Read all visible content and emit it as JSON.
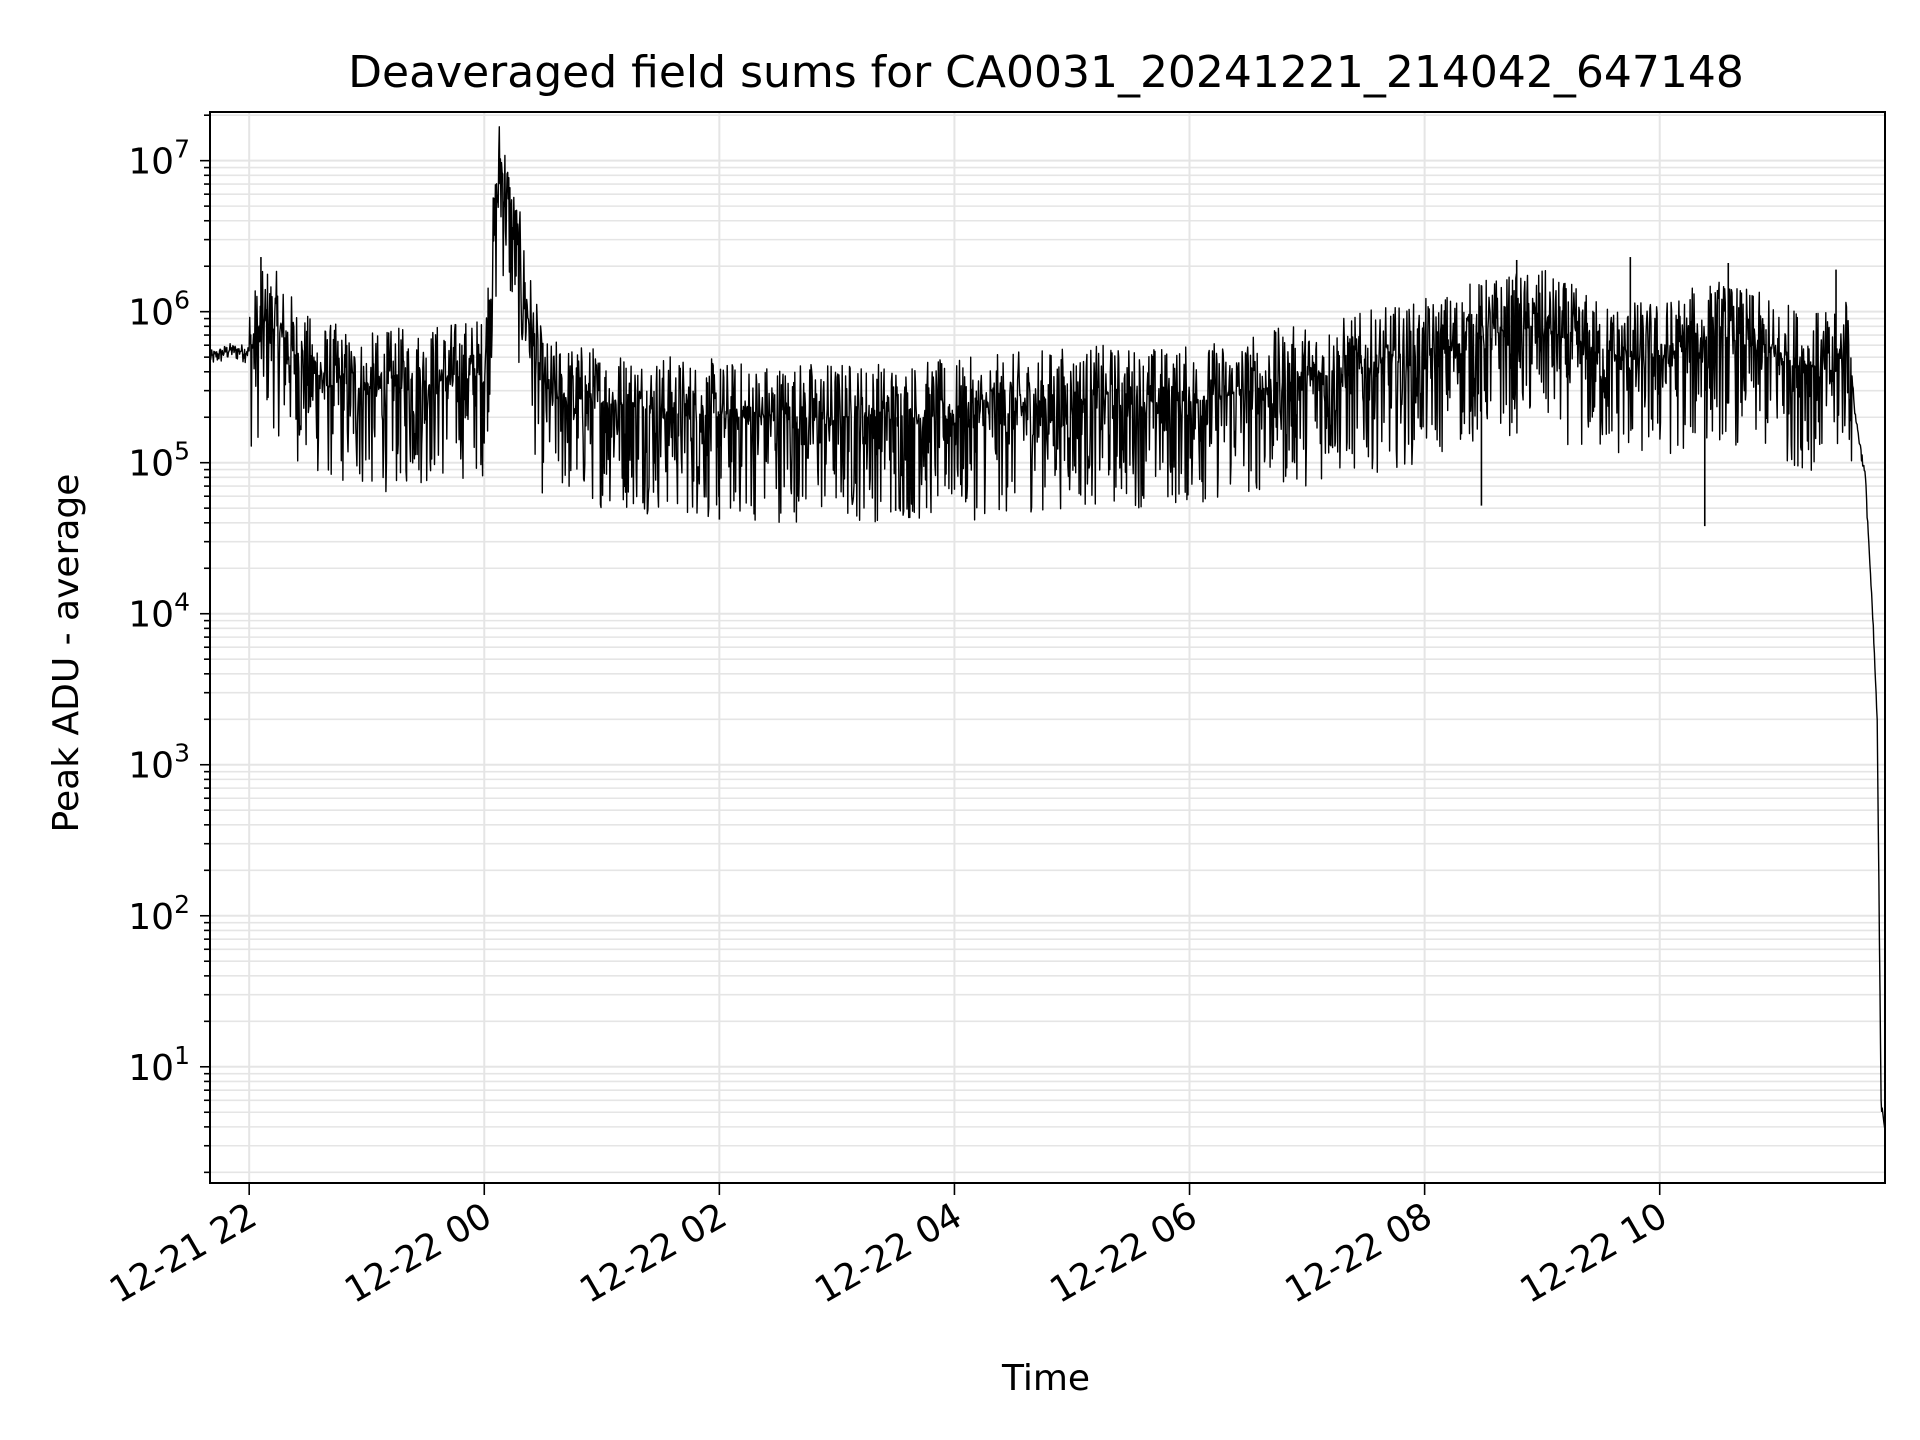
{
  "chart_data": {
    "type": "line",
    "title": "Deaveraged field sums for CA0031_20241221_214042_647148",
    "xlabel": "Time",
    "ylabel": "Peak ADU - average",
    "yscale": "log",
    "grid": "on (major and minor)",
    "line_color": "#000000",
    "grid_color": "#e5e5e5",
    "x_tick_labels": [
      "12-21 22",
      "12-22 00",
      "12-22 02",
      "12-22 04",
      "12-22 06",
      "12-22 08",
      "12-22 10"
    ],
    "y_tick_labels": [
      {
        "base": "10",
        "exp": "1"
      },
      {
        "base": "10",
        "exp": "2"
      },
      {
        "base": "10",
        "exp": "3"
      },
      {
        "base": "10",
        "exp": "4"
      },
      {
        "base": "10",
        "exp": "5"
      },
      {
        "base": "10",
        "exp": "6"
      },
      {
        "base": "10",
        "exp": "7"
      }
    ],
    "xlim": [
      "2024-12-21 21:40",
      "2024-12-22 11:55"
    ],
    "ylim": [
      1.7,
      21000000
    ],
    "series": [
      {
        "x": [
          "2024-12-21 21:40",
          "2024-12-21 21:50",
          "2024-12-21 22:00",
          "2024-12-21 22:10",
          "2024-12-21 22:30",
          "2024-12-21 23:00",
          "2024-12-21 23:30",
          "2024-12-22 00:00",
          "2024-12-22 00:08",
          "2024-12-22 00:30",
          "2024-12-22 01:00",
          "2024-12-22 02:00",
          "2024-12-22 03:00",
          "2024-12-22 04:00",
          "2024-12-22 05:00",
          "2024-12-22 06:00",
          "2024-12-22 07:00",
          "2024-12-22 08:00",
          "2024-12-22 08:30",
          "2024-12-22 09:00",
          "2024-12-22 09:30",
          "2024-12-22 10:00",
          "2024-12-22 10:30",
          "2024-12-22 11:00",
          "2024-12-22 11:30",
          "2024-12-22 11:36",
          "2024-12-22 11:40",
          "2024-12-22 11:45",
          "2024-12-22 11:49",
          "2024-12-22 11:51",
          "2024-12-22 11:53",
          "2024-12-22 11:55"
        ],
        "y": [
          500000,
          560000,
          550000,
          900000,
          400000,
          300000,
          350000,
          400000,
          10000000,
          280000,
          250000,
          200000,
          200000,
          200000,
          250000,
          250000,
          350000,
          500000,
          700000,
          800000,
          500000,
          500000,
          700000,
          500000,
          400000,
          700000,
          200000,
          80000,
          8000,
          2000,
          6,
          4
        ]
      }
    ],
    "peaks": [
      {
        "x": "2024-12-22 00:08",
        "y": 10000000
      },
      {
        "x": "2024-12-21 22:06",
        "y": 2300000
      },
      {
        "x": "2024-12-22 08:47",
        "y": 2200000
      },
      {
        "x": "2024-12-22 10:35",
        "y": 2100000
      },
      {
        "x": "2024-12-22 09:45",
        "y": 2300000
      },
      {
        "x": "2024-12-22 11:30",
        "y": 1900000
      }
    ],
    "troughs": [
      {
        "x": "2024-12-22 10:23",
        "y": 38000
      },
      {
        "x": "2024-12-22 02:00",
        "y": 42000
      },
      {
        "x": "2024-12-22 08:29",
        "y": 52000
      },
      {
        "x": "2024-12-22 03:30",
        "y": 48000
      }
    ]
  }
}
